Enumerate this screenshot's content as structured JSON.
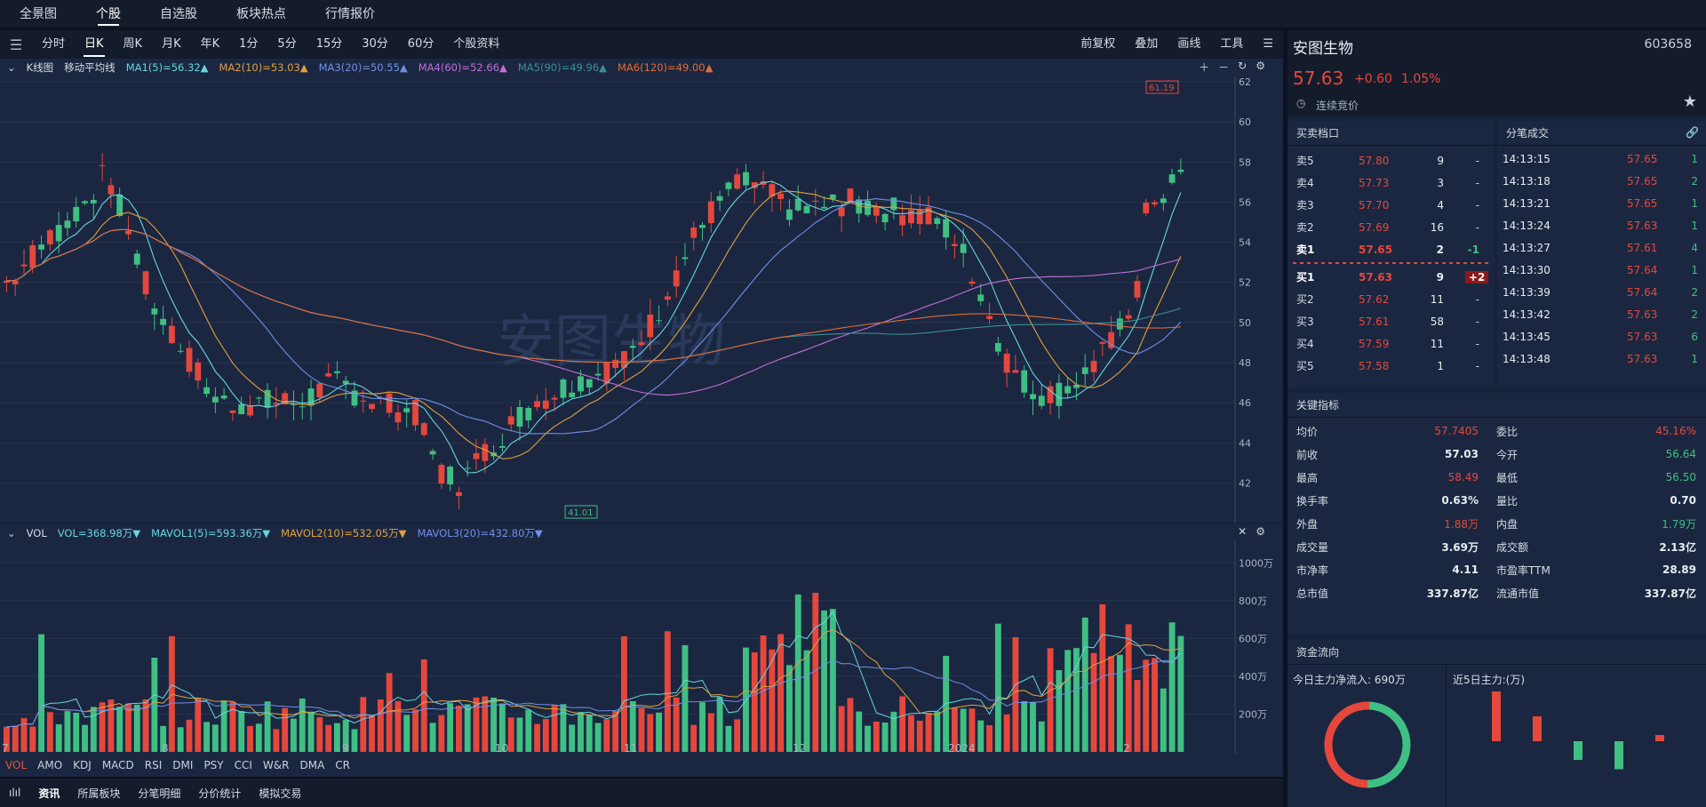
{
  "topnav": [
    "全景图",
    "个股",
    "自选股",
    "板块热点",
    "行情报价"
  ],
  "topnav_active": 1,
  "toolbar": {
    "tabs": [
      "分时",
      "日K",
      "周K",
      "月K",
      "年K",
      "1分",
      "5分",
      "15分",
      "30分",
      "60分",
      "个股资料"
    ],
    "active": 1,
    "right": [
      "前复权",
      "叠加",
      "画线",
      "工具"
    ]
  },
  "kline_legend": {
    "title": "K线图",
    "type": "移动平均线",
    "mas": [
      {
        "label": "MA1(5)=56.32▲",
        "color": "#67d5e0"
      },
      {
        "label": "MA2(10)=53.03▲",
        "color": "#e0a040"
      },
      {
        "label": "MA3(20)=50.55▲",
        "color": "#6f8fe8"
      },
      {
        "label": "MA4(60)=52.66▲",
        "color": "#c06fd8"
      },
      {
        "label": "MA5(90)=49.96▲",
        "color": "#3b8f98"
      },
      {
        "label": "MA6(120)=49.00▲",
        "color": "#e06a3a"
      }
    ]
  },
  "kline_axis": [
    "62",
    "60",
    "58",
    "56",
    "54",
    "52",
    "50",
    "48",
    "46",
    "44",
    "42"
  ],
  "kline_high_label": "61.19",
  "kline_low_label": "41.01",
  "watermark": "安图生物",
  "vol_legend": {
    "title": "VOL",
    "items": [
      {
        "label": "VOL=368.98万▼",
        "color": "#67d5e0"
      },
      {
        "label": "MAVOL1(5)=593.36万▼",
        "color": "#67d5e0"
      },
      {
        "label": "MAVOL2(10)=532.05万▼",
        "color": "#e0a040"
      },
      {
        "label": "MAVOL3(20)=432.80万▼",
        "color": "#6f8fe8"
      }
    ]
  },
  "vol_axis": [
    "1000万",
    "800万",
    "600万",
    "400万",
    "200万"
  ],
  "x_labels": [
    "7",
    "8",
    "9",
    "10",
    "11",
    "12",
    "2024",
    "2"
  ],
  "indicators": [
    "VOL",
    "AMO",
    "KDJ",
    "MACD",
    "RSI",
    "DMI",
    "PSY",
    "CCI",
    "W&R",
    "DMA",
    "CR"
  ],
  "bottom_tabs": [
    "资讯",
    "所属板块",
    "分笔明细",
    "分价统计",
    "模拟交易"
  ],
  "stock": {
    "name": "安图生物",
    "code": "603658",
    "price": "57.63",
    "change": "+0.60",
    "pct": "1.05%",
    "status": "连续竞价"
  },
  "orderbook": {
    "title": "买卖档口",
    "asks": [
      {
        "label": "卖5",
        "price": "57.80",
        "vol": "9",
        "chg": "-"
      },
      {
        "label": "卖4",
        "price": "57.73",
        "vol": "3",
        "chg": "-"
      },
      {
        "label": "卖3",
        "price": "57.70",
        "vol": "4",
        "chg": "-"
      },
      {
        "label": "卖2",
        "price": "57.69",
        "vol": "16",
        "chg": "-"
      },
      {
        "label": "卖1",
        "price": "57.65",
        "vol": "2",
        "chg": "-1"
      }
    ],
    "bids": [
      {
        "label": "买1",
        "price": "57.63",
        "vol": "9",
        "chg": "+2"
      },
      {
        "label": "买2",
        "price": "57.62",
        "vol": "11",
        "chg": "-"
      },
      {
        "label": "买3",
        "price": "57.61",
        "vol": "58",
        "chg": "-"
      },
      {
        "label": "买4",
        "price": "57.59",
        "vol": "11",
        "chg": "-"
      },
      {
        "label": "买5",
        "price": "57.58",
        "vol": "1",
        "chg": "-"
      }
    ]
  },
  "ticks": {
    "title": "分笔成交",
    "rows": [
      {
        "time": "14:13:15",
        "price": "57.65",
        "vol": "1"
      },
      {
        "time": "14:13:18",
        "price": "57.65",
        "vol": "2"
      },
      {
        "time": "14:13:21",
        "price": "57.65",
        "vol": "1"
      },
      {
        "time": "14:13:24",
        "price": "57.63",
        "vol": "1"
      },
      {
        "time": "14:13:27",
        "price": "57.61",
        "vol": "4"
      },
      {
        "time": "14:13:30",
        "price": "57.64",
        "vol": "1"
      },
      {
        "time": "14:13:39",
        "price": "57.64",
        "vol": "2"
      },
      {
        "time": "14:13:42",
        "price": "57.63",
        "vol": "2"
      },
      {
        "time": "14:13:45",
        "price": "57.63",
        "vol": "6"
      },
      {
        "time": "14:13:48",
        "price": "57.63",
        "vol": "1"
      }
    ]
  },
  "key_indicators": {
    "title": "关键指标",
    "rows": [
      {
        "l1": "均价",
        "v1": "57.7405",
        "c1": "red",
        "l2": "委比",
        "v2": "45.16%",
        "c2": "red"
      },
      {
        "l1": "前收",
        "v1": "57.03",
        "c1": "white",
        "l2": "今开",
        "v2": "56.64",
        "c2": "green"
      },
      {
        "l1": "最高",
        "v1": "58.49",
        "c1": "red",
        "l2": "最低",
        "v2": "56.50",
        "c2": "green"
      },
      {
        "l1": "换手率",
        "v1": "0.63%",
        "c1": "white",
        "l2": "量比",
        "v2": "0.70",
        "c2": "white"
      },
      {
        "l1": "外盘",
        "v1": "1.88万",
        "c1": "red",
        "l2": "内盘",
        "v2": "1.79万",
        "c2": "green"
      },
      {
        "l1": "成交量",
        "v1": "3.69万",
        "c1": "white",
        "l2": "成交额",
        "v2": "2.13亿",
        "c2": "white"
      },
      {
        "l1": "市净率",
        "v1": "4.11",
        "c1": "white",
        "l2": "市盈率TTM",
        "v2": "28.89",
        "c2": "white"
      },
      {
        "l1": "总市值",
        "v1": "337.87亿",
        "c1": "white",
        "l2": "流通市值",
        "v2": "337.87亿",
        "c2": "white"
      }
    ]
  },
  "capital_flow": {
    "title": "资金流向",
    "today": "今日主力净流入: 690万",
    "five_day": "近5日主力:(万)",
    "five_day_values": [
      80,
      40,
      -30,
      -45,
      10
    ]
  },
  "chart_data": {
    "type": "candlestick",
    "ylim": [
      41,
      62
    ],
    "candles": [],
    "volume_ylim": [
      0,
      1100
    ]
  }
}
